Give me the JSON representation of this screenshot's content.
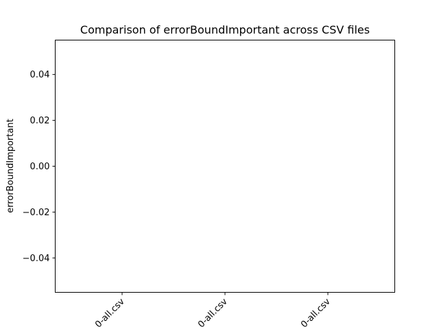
{
  "chart_data": {
    "type": "bar",
    "title": "Comparison of  errorBoundImportant across CSV files",
    "xlabel": "",
    "ylabel": "errorBoundImportant",
    "categories": [
      "0-all.csv",
      "0-all.csv",
      "0-all.csv"
    ],
    "values": [
      0,
      0,
      0
    ],
    "ylim": [
      -0.055,
      0.055
    ],
    "yticks": [
      -0.04,
      -0.02,
      0.0,
      0.02,
      0.04
    ],
    "ytick_labels": [
      "−0.04",
      "−0.02",
      "0.00",
      "0.02",
      "0.04"
    ],
    "grid": false,
    "xtick_rotation": 45
  }
}
